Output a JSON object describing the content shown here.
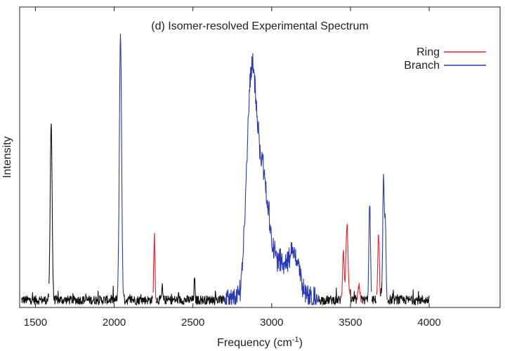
{
  "chart_data": {
    "type": "line",
    "title": "(d) Isomer-resolved Experimental Spectrum",
    "xlabel": "Frequency (cm",
    "xlabel_sup": "-1",
    "xlabel_close": ")",
    "ylabel": "Intensity",
    "xlim": [
      1400,
      4450
    ],
    "ylim": [
      0,
      1.0
    ],
    "x_ticks": [
      1500,
      2000,
      2500,
      3000,
      3500,
      4000
    ],
    "y_ticks_labeled": false,
    "grid": false,
    "legend_position": "top-right",
    "legend": [
      {
        "name": "Ring",
        "color": "#e8202a"
      },
      {
        "name": "Branch",
        "color": "#2a3ab4"
      }
    ],
    "baseline_color": "#111111",
    "peaks": [
      {
        "group": "baseline",
        "center": 1600,
        "height": 0.68,
        "width": 6
      },
      {
        "group": "Branch",
        "center": 2040,
        "height": 1.0,
        "width": 7
      },
      {
        "group": "Ring",
        "center": 2255,
        "height": 0.24,
        "width": 4
      },
      {
        "group": "baseline",
        "center": 2305,
        "height": 0.05,
        "width": 3
      },
      {
        "group": "baseline",
        "center": 2510,
        "height": 0.08,
        "width": 3
      },
      {
        "group": "Branch",
        "center": 2870,
        "height": 0.78,
        "width": 30
      },
      {
        "group": "Branch",
        "center": 2940,
        "height": 0.45,
        "width": 40
      },
      {
        "group": "Branch",
        "center": 3060,
        "height": 0.14,
        "width": 60
      },
      {
        "group": "Branch",
        "center": 3150,
        "height": 0.13,
        "width": 30
      },
      {
        "group": "Ring",
        "center": 3455,
        "height": 0.19,
        "width": 5
      },
      {
        "group": "Ring",
        "center": 3478,
        "height": 0.28,
        "width": 7
      },
      {
        "group": "Ring",
        "center": 3555,
        "height": 0.05,
        "width": 6
      },
      {
        "group": "Branch",
        "center": 3622,
        "height": 0.36,
        "width": 5
      },
      {
        "group": "Ring",
        "center": 3678,
        "height": 0.24,
        "width": 5
      },
      {
        "group": "Branch",
        "center": 3710,
        "height": 0.46,
        "width": 5
      },
      {
        "group": "Branch",
        "center": 3722,
        "height": 0.28,
        "width": 4
      }
    ],
    "segments": [
      {
        "group": "baseline",
        "from": 1410,
        "to": 1585
      },
      {
        "group": "baseline",
        "from": 1585,
        "to": 1620
      },
      {
        "group": "baseline",
        "from": 1620,
        "to": 2020
      },
      {
        "group": "Branch",
        "from": 2020,
        "to": 2060
      },
      {
        "group": "baseline",
        "from": 2060,
        "to": 2245
      },
      {
        "group": "Ring",
        "from": 2245,
        "to": 2265
      },
      {
        "group": "baseline",
        "from": 2265,
        "to": 2700
      },
      {
        "group": "Branch",
        "from": 2700,
        "to": 3300
      },
      {
        "group": "baseline",
        "from": 3300,
        "to": 3440
      },
      {
        "group": "Ring",
        "from": 3440,
        "to": 3500
      },
      {
        "group": "baseline",
        "from": 3500,
        "to": 3540
      },
      {
        "group": "Ring",
        "from": 3540,
        "to": 3570
      },
      {
        "group": "baseline",
        "from": 3570,
        "to": 3610
      },
      {
        "group": "Branch",
        "from": 3610,
        "to": 3635
      },
      {
        "group": "baseline",
        "from": 3635,
        "to": 3665
      },
      {
        "group": "Ring",
        "from": 3665,
        "to": 3690
      },
      {
        "group": "baseline",
        "from": 3690,
        "to": 3700
      },
      {
        "group": "Branch",
        "from": 3700,
        "to": 3735
      },
      {
        "group": "baseline",
        "from": 3735,
        "to": 4000
      }
    ]
  }
}
